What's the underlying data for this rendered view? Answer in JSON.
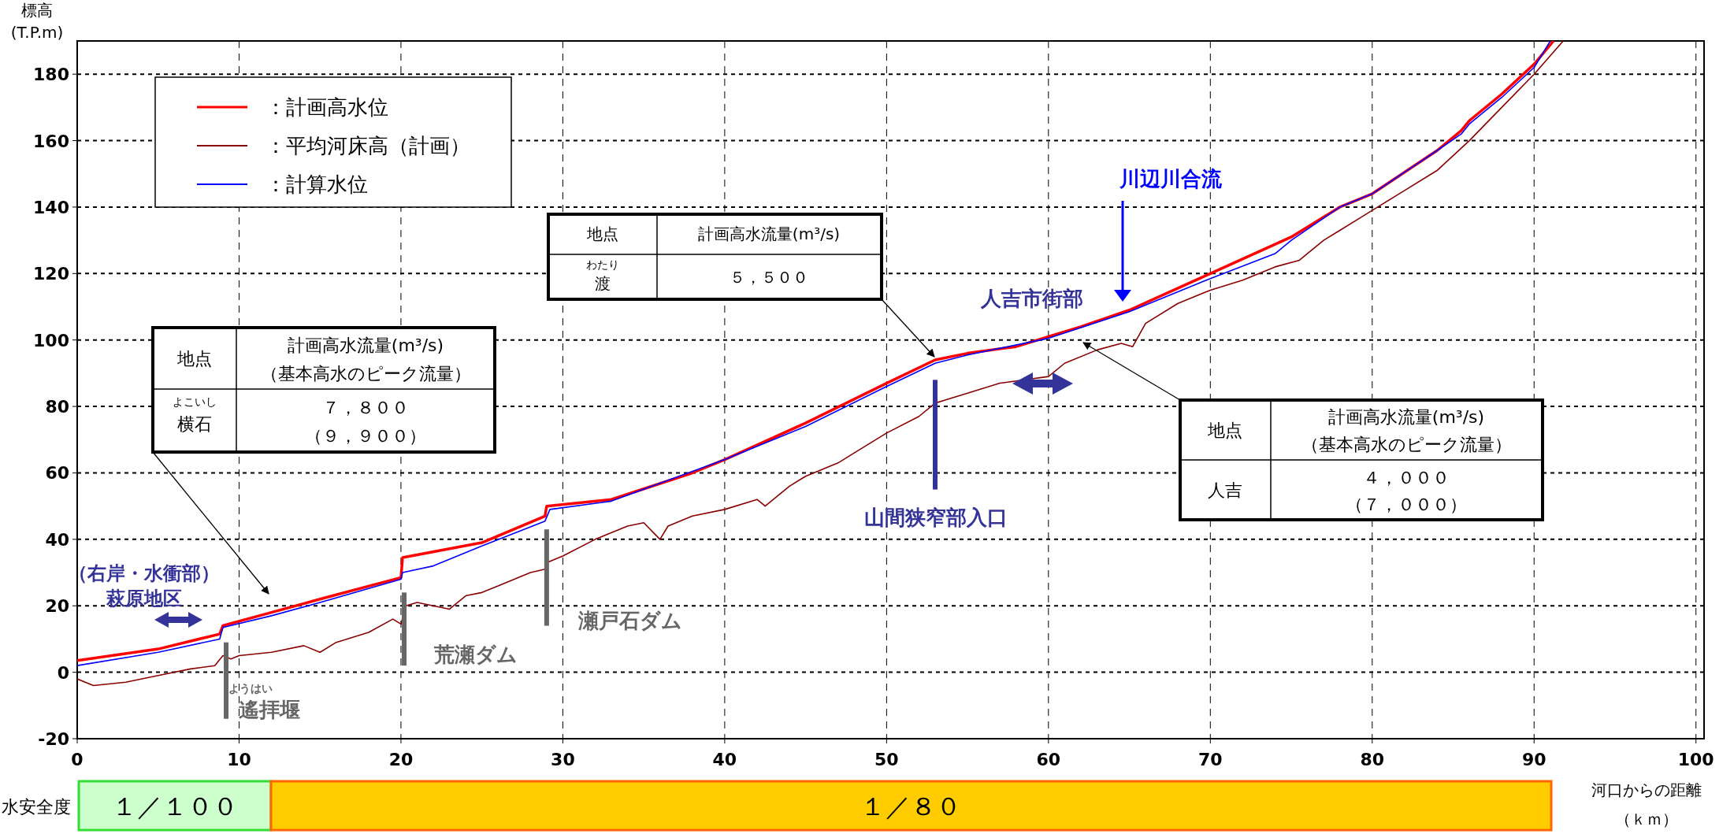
{
  "chart_data": {
    "type": "line",
    "ylabel": "標高\n(T.P.m)",
    "xlabel": "河口からの距離",
    "xlim": [
      0,
      100.5
    ],
    "xticks": [
      0,
      10,
      20,
      30,
      40,
      50,
      60,
      70,
      80,
      90,
      100
    ],
    "ylim": [
      -20,
      190
    ],
    "yticks": [
      -20,
      0,
      20,
      40,
      60,
      80,
      100,
      120,
      140,
      160,
      180
    ],
    "grid": true,
    "legend": "top left",
    "series": [
      {
        "name": "：計画高水位",
        "color": "#ff0000",
        "x": [
          0,
          5,
          8.8,
          9,
          12,
          15,
          20,
          20.1,
          25,
          28.9,
          29,
          33,
          38,
          40,
          45,
          50,
          53,
          55,
          58,
          60,
          62,
          65,
          70,
          75,
          78,
          80,
          84,
          85.5,
          86,
          88,
          90,
          91.2
        ],
        "values": [
          3.5,
          7,
          11.5,
          14,
          18,
          22,
          28.5,
          34.5,
          39,
          47,
          50,
          52,
          60,
          64,
          75,
          87,
          94,
          96,
          98,
          101,
          104,
          109,
          120,
          131,
          140,
          144,
          157,
          163,
          166,
          174,
          183,
          190
        ]
      },
      {
        "name": "：平均河床高（計画）",
        "color": "#8b0000",
        "x": [
          0,
          1,
          3,
          5,
          7,
          8.5,
          9,
          9.5,
          10,
          12,
          14,
          15,
          16,
          18,
          19.5,
          20,
          20.3,
          21,
          22,
          23,
          24,
          25,
          26,
          28,
          28.9,
          29,
          30,
          32,
          34,
          35,
          36,
          36.5,
          38,
          40,
          42,
          42.5,
          44,
          45,
          47,
          48,
          50,
          52,
          53,
          55,
          57,
          60,
          61,
          63,
          64.5,
          65.2,
          66,
          68,
          70,
          72,
          74,
          75.5,
          77,
          78,
          79,
          80,
          82,
          84,
          86,
          88,
          90,
          91.8
        ],
        "values": [
          -2,
          -4,
          -3,
          -1,
          1,
          2,
          5,
          4,
          5,
          6,
          8,
          6,
          9,
          12,
          16,
          14.5,
          20,
          21,
          20,
          19,
          23,
          24,
          26,
          30,
          31,
          33,
          35,
          40,
          44,
          45,
          40,
          44,
          47,
          49,
          52,
          50,
          56,
          59,
          63,
          66,
          72,
          77,
          81,
          84,
          87,
          89,
          93,
          97,
          99,
          98,
          105,
          111,
          115,
          118,
          122,
          124,
          130,
          133,
          136,
          139,
          145,
          151,
          160,
          170,
          180,
          190
        ]
      },
      {
        "name": "：計算水位",
        "color": "#0000ff",
        "x": [
          0,
          5,
          8.8,
          9,
          12,
          15,
          20,
          20.1,
          22,
          25,
          28.9,
          29.2,
          33,
          40,
          45,
          50,
          53,
          55,
          60,
          65,
          70,
          74,
          75,
          78,
          80,
          84,
          85.5,
          86,
          88,
          90,
          91
        ],
        "values": [
          2,
          6,
          10,
          13.5,
          17,
          21,
          28,
          30,
          32,
          38,
          45.5,
          49,
          51.5,
          64,
          74,
          86,
          93,
          95.5,
          100.5,
          108.5,
          118.5,
          126,
          130,
          140,
          144,
          157,
          162,
          165,
          173,
          182,
          190
        ]
      }
    ],
    "annotations": [
      "（右岸・水衝部）",
      "萩原地区",
      "ようはい",
      "遙拝堰",
      "荒瀬ダム",
      "瀬戸石ダム",
      "山間狭窄部入口",
      "人吉市街部",
      "川辺川合流",
      "地点",
      "計画高水流量(m³/s)",
      "（基本高水のピーク流量）",
      "よこいし",
      "横石",
      "７，８００",
      "（９，９００）",
      "地点",
      "計画高水流量(m³/s)",
      "わたり",
      "渡",
      "５，５００",
      "地点",
      "計画高水流量(m³/s)",
      "（基本高水のピーク流量）",
      "人吉",
      "４，０００",
      "（７，０００）",
      "水安全度",
      "１／１００",
      "１／８０",
      "（ｋｍ）"
    ]
  }
}
